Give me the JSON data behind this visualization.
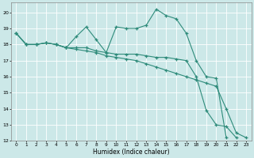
{
  "xlabel": "Humidex (Indice chaleur)",
  "bg_color": "#cce8e8",
  "grid_color": "#ffffff",
  "line_color": "#2e8b7a",
  "xlim": [
    -0.5,
    23.5
  ],
  "ylim": [
    12,
    20.6
  ],
  "xticks": [
    0,
    1,
    2,
    3,
    4,
    5,
    6,
    7,
    8,
    9,
    10,
    11,
    12,
    13,
    14,
    15,
    16,
    17,
    18,
    19,
    20,
    21,
    22,
    23
  ],
  "yticks": [
    12,
    13,
    14,
    15,
    16,
    17,
    18,
    19,
    20
  ],
  "line_spiky_x": [
    0,
    1,
    2,
    3,
    4,
    5,
    6,
    7,
    8,
    9,
    10,
    11,
    12,
    13,
    14,
    15,
    16,
    17,
    18,
    19,
    20,
    21
  ],
  "line_spiky_y": [
    18.7,
    18.0,
    18.0,
    18.1,
    18.0,
    17.8,
    18.5,
    19.1,
    18.3,
    17.5,
    19.1,
    19.0,
    19.0,
    19.2,
    20.2,
    19.8,
    19.6,
    18.7,
    17.0,
    16.0,
    15.9,
    12.2
  ],
  "line_mid_x": [
    0,
    1,
    2,
    3,
    4,
    5,
    6,
    7,
    8,
    9,
    10,
    11,
    12,
    13,
    14,
    15,
    16,
    17,
    18,
    19,
    20,
    21,
    22
  ],
  "line_mid_y": [
    18.7,
    18.0,
    18.0,
    18.1,
    18.0,
    17.8,
    17.8,
    17.8,
    17.6,
    17.5,
    17.4,
    17.4,
    17.4,
    17.3,
    17.2,
    17.2,
    17.1,
    17.0,
    16.0,
    13.9,
    13.0,
    12.9,
    12.2
  ],
  "line_steep_x": [
    0,
    1,
    2,
    3,
    4,
    5,
    6,
    7,
    8,
    9,
    10,
    11,
    12,
    13,
    14,
    15,
    16,
    17,
    18,
    19,
    20,
    21,
    22,
    23
  ],
  "line_steep_y": [
    18.7,
    18.0,
    18.0,
    18.1,
    18.0,
    17.8,
    17.7,
    17.6,
    17.5,
    17.3,
    17.2,
    17.1,
    17.0,
    16.8,
    16.6,
    16.4,
    16.2,
    16.0,
    15.8,
    15.6,
    15.4,
    14.0,
    12.5,
    12.2
  ]
}
